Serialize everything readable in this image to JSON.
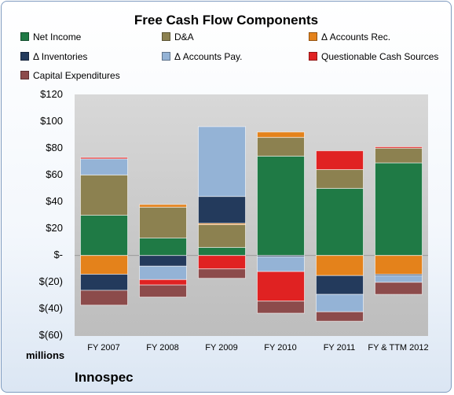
{
  "chart_data": {
    "type": "bar",
    "stacked": true,
    "title": "Free Cash Flow Components",
    "units_label": "millions",
    "company": "Innospec",
    "categories": [
      "FY 2007",
      "FY 2008",
      "FY 2009",
      "FY 2010",
      "FY 2011",
      "FY & TTM 2012"
    ],
    "ylim": [
      -60,
      120
    ],
    "yticks": [
      120,
      100,
      80,
      60,
      40,
      20,
      0,
      -20,
      -40,
      -60
    ],
    "ytick_labels": [
      "$120",
      "$100",
      "$80",
      "$60",
      "$40",
      "$20",
      "$-",
      "$(20)",
      "$(40)",
      "$(60)"
    ],
    "grid": false,
    "legend_position": "top",
    "series": [
      {
        "name": "Net Income",
        "color": "#1f7a45",
        "values": [
          30,
          13,
          6,
          74,
          50,
          69
        ]
      },
      {
        "name": "D&A",
        "color": "#8c8150",
        "values": [
          30,
          23,
          17,
          14,
          14,
          11
        ]
      },
      {
        "name": "Δ Accounts Rec.",
        "color": "#e4821b",
        "values": [
          -14,
          2,
          1,
          4,
          -15,
          -14
        ]
      },
      {
        "name": "Δ Inventories",
        "color": "#233a5c",
        "values": [
          -12,
          -8,
          20,
          -1,
          -14,
          -1
        ]
      },
      {
        "name": "Δ Accounts Pay.",
        "color": "#94b3d6",
        "values": [
          12,
          -10,
          52,
          -11,
          -13,
          -5
        ]
      },
      {
        "name": "Questionable Cash Sources",
        "color": "#e02222",
        "values": [
          1,
          -4,
          -10,
          -22,
          14,
          1
        ]
      },
      {
        "name": "Capital Expenditures",
        "color": "#8c4b4b",
        "values": [
          -11,
          -9,
          -7,
          -9,
          -7,
          -9
        ]
      }
    ]
  }
}
